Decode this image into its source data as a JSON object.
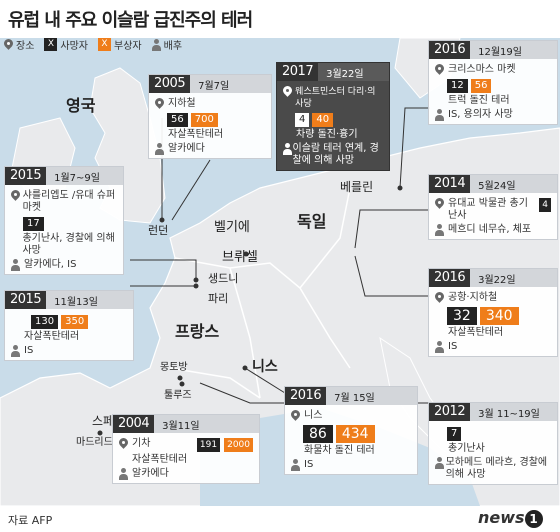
{
  "title": "유럽 내 주요 이슬람 급진주의 테러",
  "legend": {
    "place": "장소",
    "killed": "사망자",
    "killed_mark": "X",
    "injured": "부상자",
    "injured_mark": "X",
    "suspect": "배후"
  },
  "countries": {
    "uk": "영국",
    "france": "프랑스",
    "germany": "독일",
    "belgium": "벨기에",
    "spain": "스페인"
  },
  "cities": {
    "london": "런던",
    "paris": "파리",
    "saint_denis": "생드니",
    "brussels": "브뤼셀",
    "berlin": "베를린",
    "nice": "니스",
    "montauban": "몽토방",
    "toulouse": "툴루즈",
    "madrid": "마드리드"
  },
  "events": {
    "e2005": {
      "year": "2005",
      "date": "7월7일",
      "place": "지하철",
      "killed": "56",
      "injured": "700",
      "desc": "자살폭탄테러",
      "suspect": "알카에다"
    },
    "e2017": {
      "year": "2017",
      "date": "3월22일",
      "place": "웨스트민스터 다리·의사당",
      "killed": "4",
      "injured": "40",
      "desc": "차량 돌진·흉기",
      "suspect": "이슬람 테러 연계, 경찰에 의해 사망"
    },
    "e2016b": {
      "year": "2016",
      "date": "12월19일",
      "place": "크리스마스 마켓",
      "killed": "12",
      "injured": "56",
      "desc": "트럭 돌진 테러",
      "suspect": "IS, 용의자 사망"
    },
    "e2015a": {
      "year": "2015",
      "date": "1월7~9일",
      "place": "샤를리엡도 /유대 슈퍼마켓",
      "killed": "17",
      "desc": "총기난사, 경찰에 의해 사망",
      "suspect": "알카에다, IS"
    },
    "e2014": {
      "year": "2014",
      "date": "5월24일",
      "place": "유대교 박물관 총기난사",
      "killed": "4",
      "suspect": "메흐디 네무슈, 체포"
    },
    "e2016a": {
      "year": "2016",
      "date": "3월22일",
      "place": "공항·지하철",
      "killed": "32",
      "injured": "340",
      "desc": "자살폭탄테러",
      "suspect": "IS"
    },
    "e2015b": {
      "year": "2015",
      "date": "11월13일",
      "killed": "130",
      "injured": "350",
      "desc": "자살폭탄테러",
      "suspect": "IS"
    },
    "e2004": {
      "year": "2004",
      "date": "3월11일",
      "place": "기차",
      "killed": "191",
      "injured": "2000",
      "desc": "자살폭탄테러",
      "suspect": "알카에다"
    },
    "e2016c": {
      "year": "2016",
      "date": "7월 15일",
      "place": "니스",
      "killed": "86",
      "injured": "434",
      "desc": "화물차 돌진 테러",
      "suspect": "IS"
    },
    "e2012": {
      "year": "2012",
      "date": "3월 11~19일",
      "killed": "7",
      "desc": "총기난사",
      "suspect": "모하메드 메라흐, 경찰에 의해 사망"
    }
  },
  "source_label": "자료",
  "source": "AFP",
  "brand": "news",
  "brand_num": "1",
  "colors": {
    "sea": "#c9dce9",
    "land": "#e9eaec",
    "accent": "#ef7d1a",
    "dark": "#222222"
  }
}
